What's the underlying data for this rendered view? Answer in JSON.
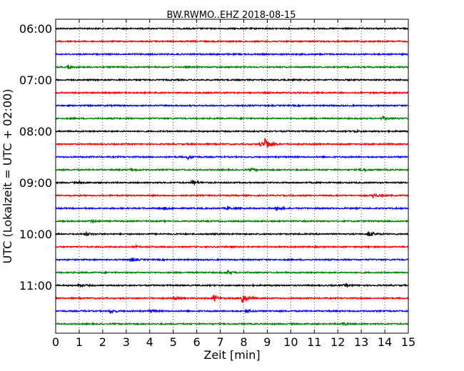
{
  "chart_data": {
    "type": "line",
    "title": "BW.RWMO..EHZ 2018-08-15",
    "xlabel": "Zeit  [min]",
    "ylabel": "UTC (Lokalzeit = UTC + 02:00)",
    "xlim": [
      0,
      15
    ],
    "x_ticks": [
      "0",
      "1",
      "2",
      "3",
      "4",
      "5",
      "6",
      "7",
      "8",
      "9",
      "10",
      "11",
      "12",
      "13",
      "14",
      "15"
    ],
    "y_ticks": [
      "06:00",
      "07:00",
      "08:00",
      "09:00",
      "10:00",
      "11:00"
    ],
    "grid": "vertical dotted at each minute",
    "trace_interval_min": 15,
    "trace_colors": [
      "#000000",
      "#ff0000",
      "#0000ff",
      "#008000"
    ],
    "series": [
      {
        "start": "06:00",
        "events": []
      },
      {
        "start": "06:15",
        "events": []
      },
      {
        "start": "06:30",
        "events": []
      },
      {
        "start": "06:45",
        "events": [
          {
            "t": 0.5,
            "amp": 2
          }
        ]
      },
      {
        "start": "07:00",
        "events": []
      },
      {
        "start": "07:15",
        "events": []
      },
      {
        "start": "07:30",
        "events": []
      },
      {
        "start": "07:45",
        "events": [
          {
            "t": 13.9,
            "amp": 2
          }
        ]
      },
      {
        "start": "08:00",
        "events": [
          {
            "t": 12.7,
            "amp": 1
          }
        ]
      },
      {
        "start": "08:15",
        "events": [
          {
            "t": 8.9,
            "amp": 9
          },
          {
            "t": 8.7,
            "amp": 3
          }
        ]
      },
      {
        "start": "08:30",
        "events": [
          {
            "t": 5.6,
            "amp": 3
          }
        ]
      },
      {
        "start": "08:45",
        "events": [
          {
            "t": 3.2,
            "amp": 2
          },
          {
            "t": 8.3,
            "amp": 2
          },
          {
            "t": 13.0,
            "amp": 3
          }
        ]
      },
      {
        "start": "09:00",
        "events": [
          {
            "t": 5.8,
            "amp": 4
          },
          {
            "t": 1.0,
            "amp": 1
          }
        ]
      },
      {
        "start": "09:15",
        "events": [
          {
            "t": 13.5,
            "amp": 3
          }
        ]
      },
      {
        "start": "09:30",
        "events": [
          {
            "t": 9.4,
            "amp": 3
          },
          {
            "t": 4.6,
            "amp": 2
          },
          {
            "t": 7.3,
            "amp": 2
          }
        ]
      },
      {
        "start": "09:45",
        "events": [
          {
            "t": 1.5,
            "amp": 2
          }
        ]
      },
      {
        "start": "10:00",
        "events": [
          {
            "t": 13.3,
            "amp": 4
          },
          {
            "t": 1.3,
            "amp": 2
          }
        ]
      },
      {
        "start": "10:15",
        "events": [
          {
            "t": 3.4,
            "amp": 1
          }
        ]
      },
      {
        "start": "10:30",
        "events": [
          {
            "t": 3.2,
            "amp": 3
          }
        ]
      },
      {
        "start": "10:45",
        "events": [
          {
            "t": 7.3,
            "amp": 2
          }
        ]
      },
      {
        "start": "11:00",
        "events": [
          {
            "t": 1.0,
            "amp": 2
          },
          {
            "t": 12.3,
            "amp": 2
          }
        ]
      },
      {
        "start": "11:15",
        "events": [
          {
            "t": 7.9,
            "amp": 9
          },
          {
            "t": 6.7,
            "amp": 5
          },
          {
            "t": 5.0,
            "amp": 2
          }
        ]
      },
      {
        "start": "11:30",
        "events": [
          {
            "t": 2.3,
            "amp": 3
          },
          {
            "t": 4.0,
            "amp": 2
          },
          {
            "t": 8.1,
            "amp": 2
          }
        ]
      },
      {
        "start": "11:45",
        "events": [
          {
            "t": 12.2,
            "amp": 2
          }
        ]
      }
    ]
  }
}
